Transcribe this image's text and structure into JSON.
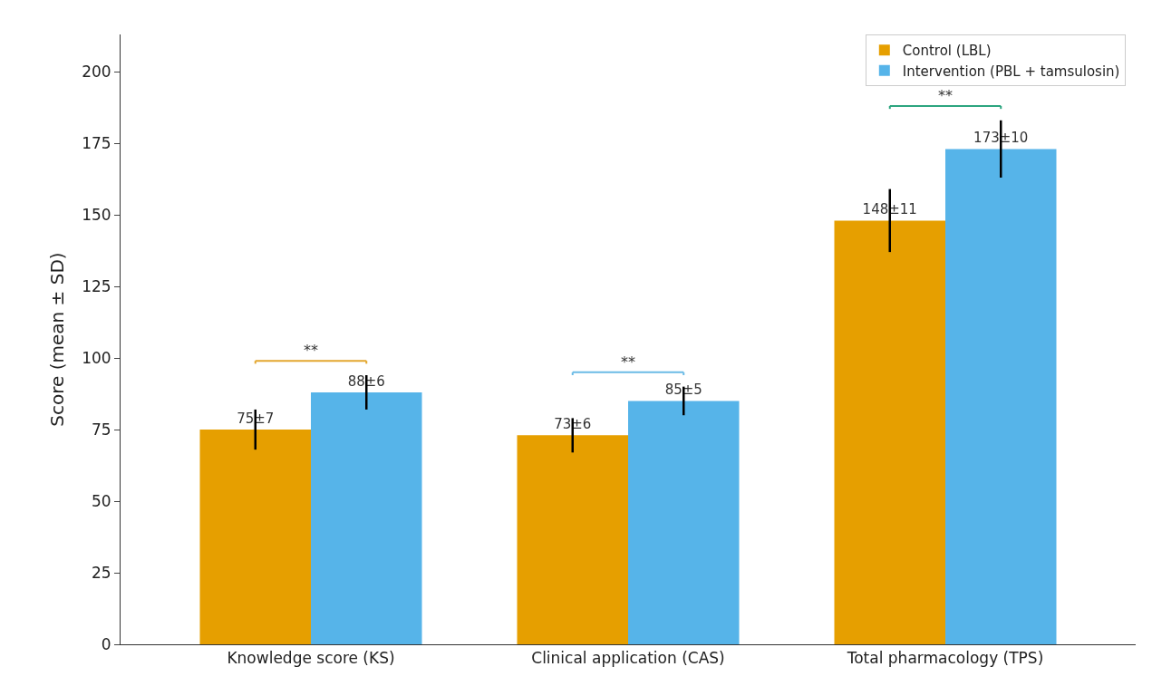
{
  "chart_data": {
    "type": "bar",
    "ylabel": "Score (mean ± SD)",
    "categories": [
      "Knowledge score (KS)",
      "Clinical application (CAS)",
      "Total pharmacology (TPS)"
    ],
    "series": [
      {
        "name": "Control (LBL)",
        "color": "#e69f00",
        "values": [
          75,
          73,
          148
        ],
        "errors": [
          7,
          6,
          11
        ],
        "value_labels": [
          "75±7",
          "73±6",
          "148±11"
        ]
      },
      {
        "name": "Intervention (PBL + tamsulosin)",
        "color": "#56b4e9",
        "values": [
          88,
          85,
          173
        ],
        "errors": [
          6,
          5,
          10
        ],
        "value_labels": [
          "88±6",
          "85±5",
          "173±10"
        ]
      }
    ],
    "annotations": [
      "**",
      "**",
      "**"
    ],
    "ylim": [
      0,
      213
    ],
    "yticks": [
      0,
      25,
      50,
      75,
      100,
      125,
      150,
      175,
      200
    ],
    "grid": false,
    "legend": "top right"
  }
}
